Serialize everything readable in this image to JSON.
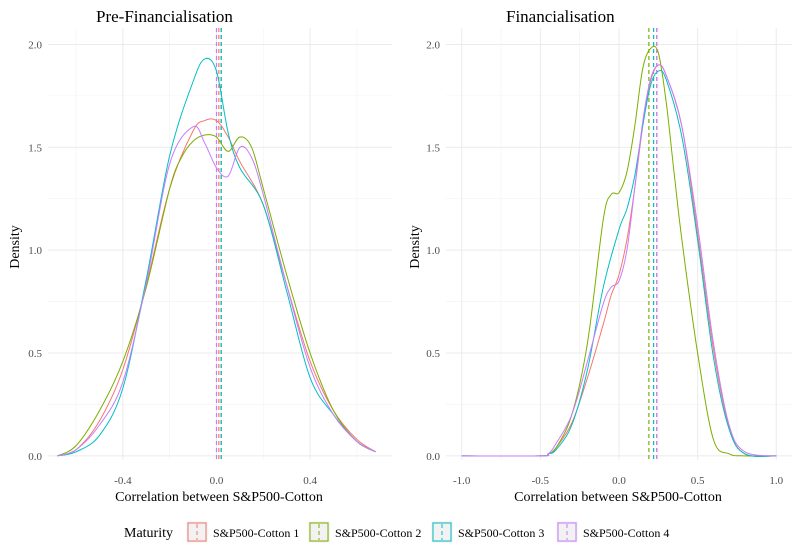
{
  "chart_data": [
    {
      "type": "line",
      "title": "Pre-Financialisation",
      "xlabel": "Correlation between S&P500-Cotton",
      "ylabel": "Density",
      "xlim": [
        -0.72,
        0.75
      ],
      "ylim": [
        -0.02,
        2.08
      ],
      "x_ticks": [
        -0.4,
        0.0,
        0.4
      ],
      "x_tick_labels": [
        "-0.4",
        "0.0",
        "0.4"
      ],
      "y_ticks": [
        0,
        0.5,
        1.0,
        1.5,
        2.0
      ],
      "y_tick_labels": [
        "0.0",
        "0.5",
        "1.0",
        "1.5",
        "2.0"
      ],
      "grid": true,
      "series": [
        {
          "name": "S&P500-Cotton 1",
          "color": "#F8766D",
          "mean": 0.01,
          "x": [
            -0.68,
            -0.6,
            -0.5,
            -0.4,
            -0.3,
            -0.2,
            -0.1,
            -0.05,
            0.0,
            0.05,
            0.1,
            0.2,
            0.3,
            0.4,
            0.5,
            0.6,
            0.68
          ],
          "y": [
            0.0,
            0.03,
            0.17,
            0.42,
            0.83,
            1.3,
            1.58,
            1.63,
            1.63,
            1.55,
            1.43,
            1.22,
            0.83,
            0.46,
            0.22,
            0.08,
            0.02
          ]
        },
        {
          "name": "S&P500-Cotton 2",
          "color": "#7CAE00",
          "mean": 0.02,
          "x": [
            -0.68,
            -0.6,
            -0.5,
            -0.4,
            -0.3,
            -0.2,
            -0.15,
            -0.1,
            -0.05,
            0.0,
            0.05,
            0.1,
            0.15,
            0.2,
            0.3,
            0.4,
            0.5,
            0.6,
            0.68
          ],
          "y": [
            0.0,
            0.05,
            0.22,
            0.46,
            0.82,
            1.3,
            1.45,
            1.53,
            1.56,
            1.55,
            1.48,
            1.55,
            1.5,
            1.3,
            0.88,
            0.5,
            0.22,
            0.07,
            0.02
          ]
        },
        {
          "name": "S&P500-Cotton 3",
          "color": "#00BFC4",
          "mean": 0.02,
          "x": [
            -0.68,
            -0.6,
            -0.5,
            -0.4,
            -0.3,
            -0.2,
            -0.1,
            -0.05,
            0.0,
            0.05,
            0.1,
            0.2,
            0.3,
            0.4,
            0.5,
            0.6,
            0.68
          ],
          "y": [
            0.0,
            0.02,
            0.1,
            0.33,
            0.86,
            1.46,
            1.82,
            1.93,
            1.87,
            1.57,
            1.4,
            1.22,
            0.8,
            0.38,
            0.2,
            0.07,
            0.02
          ]
        },
        {
          "name": "S&P500-Cotton 4",
          "color": "#C77CFF",
          "mean": 0.0,
          "x": [
            -0.68,
            -0.6,
            -0.5,
            -0.4,
            -0.3,
            -0.2,
            -0.1,
            -0.05,
            0.0,
            0.05,
            0.1,
            0.15,
            0.2,
            0.3,
            0.4,
            0.5,
            0.6,
            0.68
          ],
          "y": [
            0.0,
            0.03,
            0.15,
            0.36,
            0.84,
            1.42,
            1.6,
            1.52,
            1.4,
            1.36,
            1.5,
            1.45,
            1.27,
            0.83,
            0.43,
            0.2,
            0.07,
            0.02
          ]
        }
      ]
    },
    {
      "type": "line",
      "title": "Financialisation",
      "xlabel": "Correlation between S&P500-Cotton",
      "ylabel": "Density",
      "xlim": [
        -1.1,
        1.1
      ],
      "ylim": [
        -0.02,
        2.08
      ],
      "x_ticks": [
        -1.0,
        -0.5,
        0.0,
        0.5,
        1.0
      ],
      "x_tick_labels": [
        "-1.0",
        "-0.5",
        "0.0",
        "0.5",
        "1.0"
      ],
      "y_ticks": [
        0,
        0.5,
        1.0,
        1.5,
        2.0
      ],
      "y_tick_labels": [
        "0.0",
        "0.5",
        "1.0",
        "1.5",
        "2.0"
      ],
      "grid": true,
      "series": [
        {
          "name": "S&P500-Cotton 1",
          "color": "#F8766D",
          "mean": 0.24,
          "x": [
            -1.0,
            -0.5,
            -0.45,
            -0.4,
            -0.3,
            -0.2,
            -0.1,
            -0.05,
            0.0,
            0.05,
            0.1,
            0.15,
            0.2,
            0.25,
            0.3,
            0.4,
            0.5,
            0.6,
            0.7,
            0.8,
            1.0
          ],
          "y": [
            0.0,
            0.0,
            0.01,
            0.04,
            0.16,
            0.38,
            0.64,
            0.78,
            0.88,
            1.05,
            1.3,
            1.6,
            1.82,
            1.9,
            1.85,
            1.6,
            1.08,
            0.52,
            0.14,
            0.01,
            0.0
          ]
        },
        {
          "name": "S&P500-Cotton 2",
          "color": "#7CAE00",
          "mean": 0.19,
          "x": [
            -1.0,
            -0.5,
            -0.45,
            -0.4,
            -0.3,
            -0.2,
            -0.1,
            -0.05,
            0.0,
            0.05,
            0.1,
            0.15,
            0.2,
            0.25,
            0.3,
            0.35,
            0.4,
            0.5,
            0.6,
            0.7,
            0.8,
            1.0
          ],
          "y": [
            0.0,
            0.0,
            0.01,
            0.04,
            0.2,
            0.55,
            1.15,
            1.27,
            1.28,
            1.38,
            1.6,
            1.88,
            1.98,
            1.96,
            1.72,
            1.38,
            1.05,
            0.5,
            0.08,
            0.01,
            0.0,
            0.0
          ]
        },
        {
          "name": "S&P500-Cotton 3",
          "color": "#00BFC4",
          "mean": 0.22,
          "x": [
            -1.0,
            -0.5,
            -0.45,
            -0.4,
            -0.3,
            -0.2,
            -0.1,
            0.0,
            0.05,
            0.1,
            0.15,
            0.2,
            0.25,
            0.3,
            0.4,
            0.5,
            0.6,
            0.7,
            0.8,
            1.0
          ],
          "y": [
            0.0,
            0.0,
            0.01,
            0.03,
            0.15,
            0.42,
            0.82,
            1.1,
            1.2,
            1.36,
            1.6,
            1.8,
            1.87,
            1.83,
            1.55,
            1.05,
            0.48,
            0.13,
            0.01,
            0.0
          ]
        },
        {
          "name": "S&P500-Cotton 4",
          "color": "#C77CFF",
          "mean": 0.24,
          "x": [
            -1.0,
            -0.5,
            -0.45,
            -0.4,
            -0.3,
            -0.2,
            -0.1,
            -0.05,
            0.0,
            0.05,
            0.1,
            0.15,
            0.2,
            0.25,
            0.3,
            0.4,
            0.5,
            0.6,
            0.7,
            0.8,
            1.0
          ],
          "y": [
            0.0,
            0.0,
            0.01,
            0.06,
            0.2,
            0.46,
            0.74,
            0.82,
            0.85,
            1.0,
            1.3,
            1.62,
            1.83,
            1.9,
            1.85,
            1.6,
            1.12,
            0.55,
            0.15,
            0.02,
            0.0
          ]
        }
      ]
    }
  ],
  "legend": {
    "title": "Maturity",
    "entries": [
      "S&P500-Cotton 1",
      "S&P500-Cotton 2",
      "S&P500-Cotton 3",
      "S&P500-Cotton 4"
    ],
    "colors": [
      "#F8766D",
      "#7CAE00",
      "#00BFC4",
      "#C77CFF"
    ],
    "placement": "bottom"
  }
}
